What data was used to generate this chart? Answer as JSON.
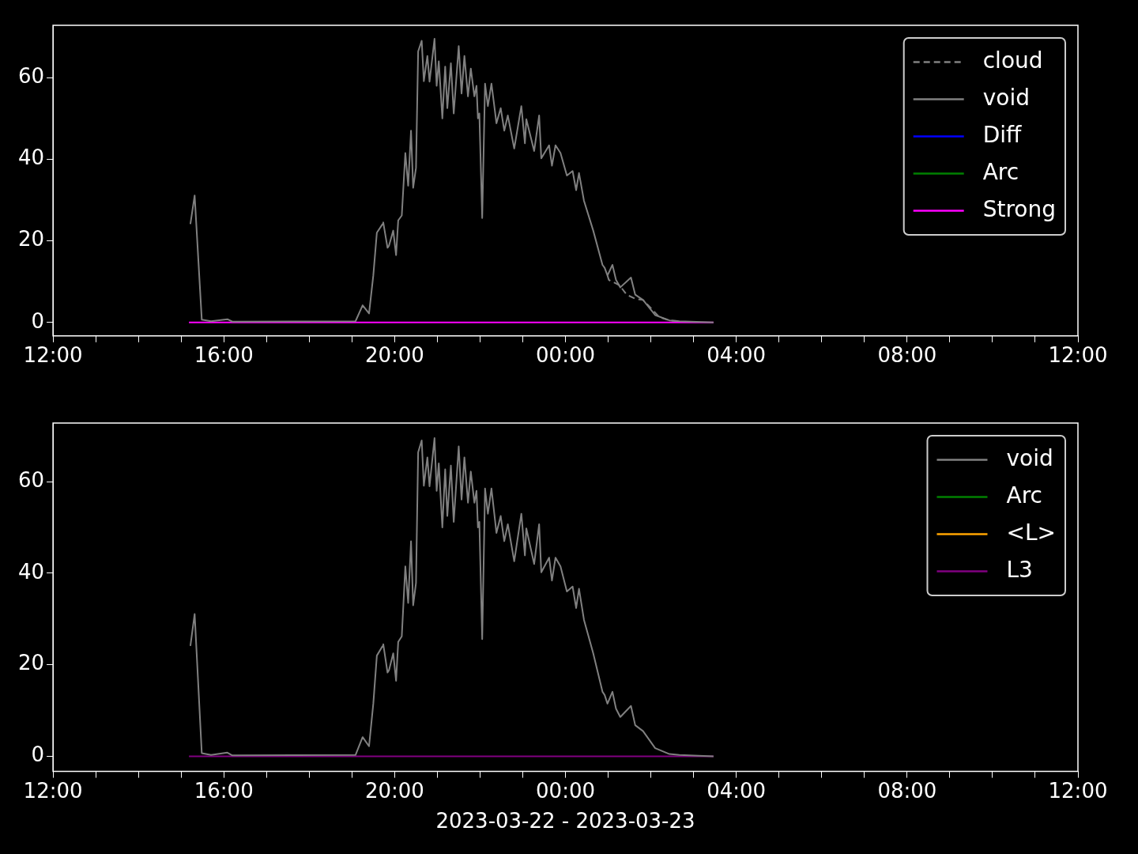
{
  "chart_data": [
    {
      "type": "line",
      "xlim": [
        "2023-03-22T12:00",
        "2023-03-23T12:00"
      ],
      "ylim": [
        -3.3,
        72.8
      ],
      "yticks": [
        0,
        20,
        40,
        60
      ],
      "xticks": [
        {
          "value": "2023-03-22T12:00",
          "label": "12:00"
        },
        {
          "value": "2023-03-22T13:00",
          "label": null
        },
        {
          "value": "2023-03-22T14:00",
          "label": null
        },
        {
          "value": "2023-03-22T15:00",
          "label": null
        },
        {
          "value": "2023-03-22T16:00",
          "label": "16:00"
        },
        {
          "value": "2023-03-22T17:00",
          "label": null
        },
        {
          "value": "2023-03-22T18:00",
          "label": null
        },
        {
          "value": "2023-03-22T19:00",
          "label": null
        },
        {
          "value": "2023-03-22T20:00",
          "label": "20:00"
        },
        {
          "value": "2023-03-22T21:00",
          "label": null
        },
        {
          "value": "2023-03-22T22:00",
          "label": null
        },
        {
          "value": "2023-03-22T23:00",
          "label": null
        },
        {
          "value": "2023-03-23T00:00",
          "label": "00:00"
        },
        {
          "value": "2023-03-23T01:00",
          "label": null
        },
        {
          "value": "2023-03-23T02:00",
          "label": null
        },
        {
          "value": "2023-03-23T03:00",
          "label": null
        },
        {
          "value": "2023-03-23T04:00",
          "label": "04:00"
        },
        {
          "value": "2023-03-23T05:00",
          "label": null
        },
        {
          "value": "2023-03-23T06:00",
          "label": null
        },
        {
          "value": "2023-03-23T07:00",
          "label": null
        },
        {
          "value": "2023-03-23T08:00",
          "label": "08:00"
        },
        {
          "value": "2023-03-23T09:00",
          "label": null
        },
        {
          "value": "2023-03-23T10:00",
          "label": null
        },
        {
          "value": "2023-03-23T11:00",
          "label": null
        },
        {
          "value": "2023-03-23T12:00",
          "label": "12:00"
        }
      ],
      "legend": "top right",
      "series": [
        {
          "name": "cloud",
          "color": "#808080",
          "line_style": "dashed",
          "x": [
            "2023-03-23T00:59",
            "2023-03-23T01:01",
            "2023-03-23T01:16",
            "2023-03-23T01:26",
            "2023-03-23T01:38",
            "2023-03-23T01:49",
            "2023-03-23T01:59",
            "2023-03-23T02:12",
            "2023-03-23T02:26",
            "2023-03-23T02:40"
          ],
          "values": [
            11.5,
            10.4,
            9.1,
            6.8,
            5.8,
            5.5,
            3.7,
            1.3,
            0.5,
            0.3
          ]
        },
        {
          "name": "void",
          "color": "#808080",
          "line_style": "solid",
          "x": [
            "2023-03-22T15:13",
            "2023-03-22T15:19",
            "2023-03-22T15:29",
            "2023-03-22T15:42",
            "2023-03-22T16:05",
            "2023-03-22T16:12",
            "2023-03-22T19:05",
            "2023-03-22T19:15",
            "2023-03-22T19:24",
            "2023-03-22T19:30",
            "2023-03-22T19:35",
            "2023-03-22T19:43",
            "2023-03-22T19:44",
            "2023-03-22T19:50",
            "2023-03-22T19:52",
            "2023-03-22T19:58",
            "2023-03-22T20:02",
            "2023-03-22T20:05",
            "2023-03-22T20:10",
            "2023-03-22T20:15",
            "2023-03-22T20:19",
            "2023-03-22T20:23",
            "2023-03-22T20:26",
            "2023-03-22T20:30",
            "2023-03-22T20:33",
            "2023-03-22T20:38",
            "2023-03-22T20:41",
            "2023-03-22T20:46",
            "2023-03-22T20:49",
            "2023-03-22T20:52",
            "2023-03-22T20:56",
            "2023-03-22T20:59",
            "2023-03-22T21:02",
            "2023-03-22T21:07",
            "2023-03-22T21:11",
            "2023-03-22T21:14",
            "2023-03-22T21:19",
            "2023-03-22T21:23",
            "2023-03-22T21:30",
            "2023-03-22T21:34",
            "2023-03-22T21:38",
            "2023-03-22T21:43",
            "2023-03-22T21:47",
            "2023-03-22T21:52",
            "2023-03-22T21:55",
            "2023-03-22T21:57",
            "2023-03-22T21:59",
            "2023-03-22T22:03",
            "2023-03-22T22:07",
            "2023-03-22T22:11",
            "2023-03-22T22:16",
            "2023-03-22T22:20",
            "2023-03-22T22:23",
            "2023-03-22T22:29",
            "2023-03-22T22:34",
            "2023-03-22T22:39",
            "2023-03-22T22:48",
            "2023-03-22T22:58",
            "2023-03-22T23:03",
            "2023-03-22T23:05",
            "2023-03-22T23:16",
            "2023-03-22T23:23",
            "2023-03-22T23:26",
            "2023-03-22T23:37",
            "2023-03-22T23:41",
            "2023-03-22T23:46",
            "2023-03-22T23:53",
            "2023-03-23T00:02",
            "2023-03-23T00:10",
            "2023-03-23T00:15",
            "2023-03-23T00:19",
            "2023-03-23T00:26",
            "2023-03-23T00:39",
            "2023-03-23T00:52",
            "2023-03-23T00:55",
            "2023-03-23T00:59",
            "2023-03-23T01:06",
            "2023-03-23T01:11",
            "2023-03-23T01:17",
            "2023-03-23T01:32",
            "2023-03-23T01:38",
            "2023-03-23T01:49",
            "2023-03-23T02:06",
            "2023-03-23T02:26",
            "2023-03-23T02:40",
            "2023-03-23T03:28"
          ],
          "values": [
            24.1,
            31.1,
            0.7,
            0.3,
            0.8,
            0.2,
            0.3,
            4.2,
            2.2,
            11.5,
            22,
            24.1,
            24.5,
            18.3,
            18.8,
            22.5,
            16.5,
            25,
            26.2,
            41.5,
            33.5,
            47,
            33,
            37.9,
            66.4,
            69,
            59.1,
            65.3,
            59,
            63.5,
            69.5,
            58,
            64,
            50,
            62.7,
            52.5,
            63.5,
            51.2,
            67.7,
            56.1,
            65.3,
            55.4,
            62.2,
            55.4,
            58,
            50,
            51.2,
            25.6,
            58.5,
            53,
            58.5,
            53,
            48.8,
            52.5,
            47,
            50.7,
            42.6,
            53,
            43.9,
            49.8,
            42,
            50.7,
            40.2,
            43.4,
            38.4,
            43.4,
            41.5,
            36,
            37.1,
            32.4,
            36.6,
            29.8,
            22.5,
            14.1,
            13.4,
            11.5,
            14.1,
            10.4,
            8.6,
            11,
            6.8,
            5.5,
            1.8,
            0.5,
            0.3,
            0
          ]
        },
        {
          "name": "Diff",
          "color": "#0000ff",
          "line_style": "solid"
        },
        {
          "name": "Arc",
          "color": "#008000",
          "line_style": "solid"
        },
        {
          "name": "Strong",
          "color": "#ff00ff",
          "line_style": "solid",
          "x": [
            "2023-03-22T15:11",
            "2023-03-23T03:28"
          ],
          "values": [
            0,
            0
          ]
        }
      ]
    },
    {
      "type": "line",
      "xlim": [
        "2023-03-22T12:00",
        "2023-03-23T12:00"
      ],
      "ylim": [
        -3.3,
        72.8
      ],
      "yticks": [
        0,
        20,
        40,
        60
      ],
      "xticks": [
        {
          "value": "2023-03-22T12:00",
          "label": "12:00"
        },
        {
          "value": "2023-03-22T13:00",
          "label": null
        },
        {
          "value": "2023-03-22T14:00",
          "label": null
        },
        {
          "value": "2023-03-22T15:00",
          "label": null
        },
        {
          "value": "2023-03-22T16:00",
          "label": "16:00"
        },
        {
          "value": "2023-03-22T17:00",
          "label": null
        },
        {
          "value": "2023-03-22T18:00",
          "label": null
        },
        {
          "value": "2023-03-22T19:00",
          "label": null
        },
        {
          "value": "2023-03-22T20:00",
          "label": "20:00"
        },
        {
          "value": "2023-03-22T21:00",
          "label": null
        },
        {
          "value": "2023-03-22T22:00",
          "label": null
        },
        {
          "value": "2023-03-22T23:00",
          "label": null
        },
        {
          "value": "2023-03-23T00:00",
          "label": "00:00"
        },
        {
          "value": "2023-03-23T01:00",
          "label": null
        },
        {
          "value": "2023-03-23T02:00",
          "label": null
        },
        {
          "value": "2023-03-23T03:00",
          "label": null
        },
        {
          "value": "2023-03-23T04:00",
          "label": "04:00"
        },
        {
          "value": "2023-03-23T05:00",
          "label": null
        },
        {
          "value": "2023-03-23T06:00",
          "label": null
        },
        {
          "value": "2023-03-23T07:00",
          "label": null
        },
        {
          "value": "2023-03-23T08:00",
          "label": "08:00"
        },
        {
          "value": "2023-03-23T09:00",
          "label": null
        },
        {
          "value": "2023-03-23T10:00",
          "label": null
        },
        {
          "value": "2023-03-23T11:00",
          "label": null
        },
        {
          "value": "2023-03-23T12:00",
          "label": "12:00"
        }
      ],
      "xlabel": "2023-03-22 - 2023-03-23",
      "legend": "top right",
      "series": [
        {
          "name": "void",
          "color": "#808080",
          "line_style": "solid",
          "x": [
            "2023-03-22T15:13",
            "2023-03-22T15:19",
            "2023-03-22T15:29",
            "2023-03-22T15:42",
            "2023-03-22T16:05",
            "2023-03-22T16:12",
            "2023-03-22T19:05",
            "2023-03-22T19:15",
            "2023-03-22T19:24",
            "2023-03-22T19:30",
            "2023-03-22T19:35",
            "2023-03-22T19:43",
            "2023-03-22T19:44",
            "2023-03-22T19:50",
            "2023-03-22T19:52",
            "2023-03-22T19:58",
            "2023-03-22T20:02",
            "2023-03-22T20:05",
            "2023-03-22T20:10",
            "2023-03-22T20:15",
            "2023-03-22T20:19",
            "2023-03-22T20:23",
            "2023-03-22T20:26",
            "2023-03-22T20:30",
            "2023-03-22T20:33",
            "2023-03-22T20:38",
            "2023-03-22T20:41",
            "2023-03-22T20:46",
            "2023-03-22T20:49",
            "2023-03-22T20:52",
            "2023-03-22T20:56",
            "2023-03-22T20:59",
            "2023-03-22T21:02",
            "2023-03-22T21:07",
            "2023-03-22T21:11",
            "2023-03-22T21:14",
            "2023-03-22T21:19",
            "2023-03-22T21:23",
            "2023-03-22T21:30",
            "2023-03-22T21:34",
            "2023-03-22T21:38",
            "2023-03-22T21:43",
            "2023-03-22T21:47",
            "2023-03-22T21:52",
            "2023-03-22T21:55",
            "2023-03-22T21:57",
            "2023-03-22T21:59",
            "2023-03-22T22:03",
            "2023-03-22T22:07",
            "2023-03-22T22:11",
            "2023-03-22T22:16",
            "2023-03-22T22:20",
            "2023-03-22T22:23",
            "2023-03-22T22:29",
            "2023-03-22T22:34",
            "2023-03-22T22:39",
            "2023-03-22T22:48",
            "2023-03-22T22:58",
            "2023-03-22T23:03",
            "2023-03-22T23:05",
            "2023-03-22T23:16",
            "2023-03-22T23:23",
            "2023-03-22T23:26",
            "2023-03-22T23:37",
            "2023-03-22T23:41",
            "2023-03-22T23:46",
            "2023-03-22T23:53",
            "2023-03-23T00:02",
            "2023-03-23T00:10",
            "2023-03-23T00:15",
            "2023-03-23T00:19",
            "2023-03-23T00:26",
            "2023-03-23T00:39",
            "2023-03-23T00:52",
            "2023-03-23T00:55",
            "2023-03-23T00:59",
            "2023-03-23T01:06",
            "2023-03-23T01:11",
            "2023-03-23T01:17",
            "2023-03-23T01:32",
            "2023-03-23T01:38",
            "2023-03-23T01:49",
            "2023-03-23T02:06",
            "2023-03-23T02:26",
            "2023-03-23T02:40",
            "2023-03-23T03:28"
          ],
          "values": [
            24.1,
            31.1,
            0.7,
            0.3,
            0.8,
            0.2,
            0.3,
            4.2,
            2.2,
            11.5,
            22,
            24.1,
            24.5,
            18.3,
            18.8,
            22.5,
            16.5,
            25,
            26.2,
            41.5,
            33.5,
            47,
            33,
            37.9,
            66.4,
            69,
            59.1,
            65.3,
            59,
            63.5,
            69.5,
            58,
            64,
            50,
            62.7,
            52.5,
            63.5,
            51.2,
            67.7,
            56.1,
            65.3,
            55.4,
            62.2,
            55.4,
            58,
            50,
            51.2,
            25.6,
            58.5,
            53,
            58.5,
            53,
            48.8,
            52.5,
            47,
            50.7,
            42.6,
            53,
            43.9,
            49.8,
            42,
            50.7,
            40.2,
            43.4,
            38.4,
            43.4,
            41.5,
            36,
            37.1,
            32.4,
            36.6,
            29.8,
            22.5,
            14.1,
            13.4,
            11.5,
            14.1,
            10.4,
            8.6,
            11,
            6.8,
            5.5,
            1.8,
            0.5,
            0.3,
            0
          ]
        },
        {
          "name": "Arc",
          "color": "#008000",
          "line_style": "solid"
        },
        {
          "name": "<L>",
          "color": "#ffa500",
          "line_style": "solid"
        },
        {
          "name": "L3",
          "color": "#800080",
          "line_style": "solid",
          "x": [
            "2023-03-22T15:11",
            "2023-03-23T03:28"
          ],
          "values": [
            0,
            0
          ]
        }
      ]
    }
  ]
}
